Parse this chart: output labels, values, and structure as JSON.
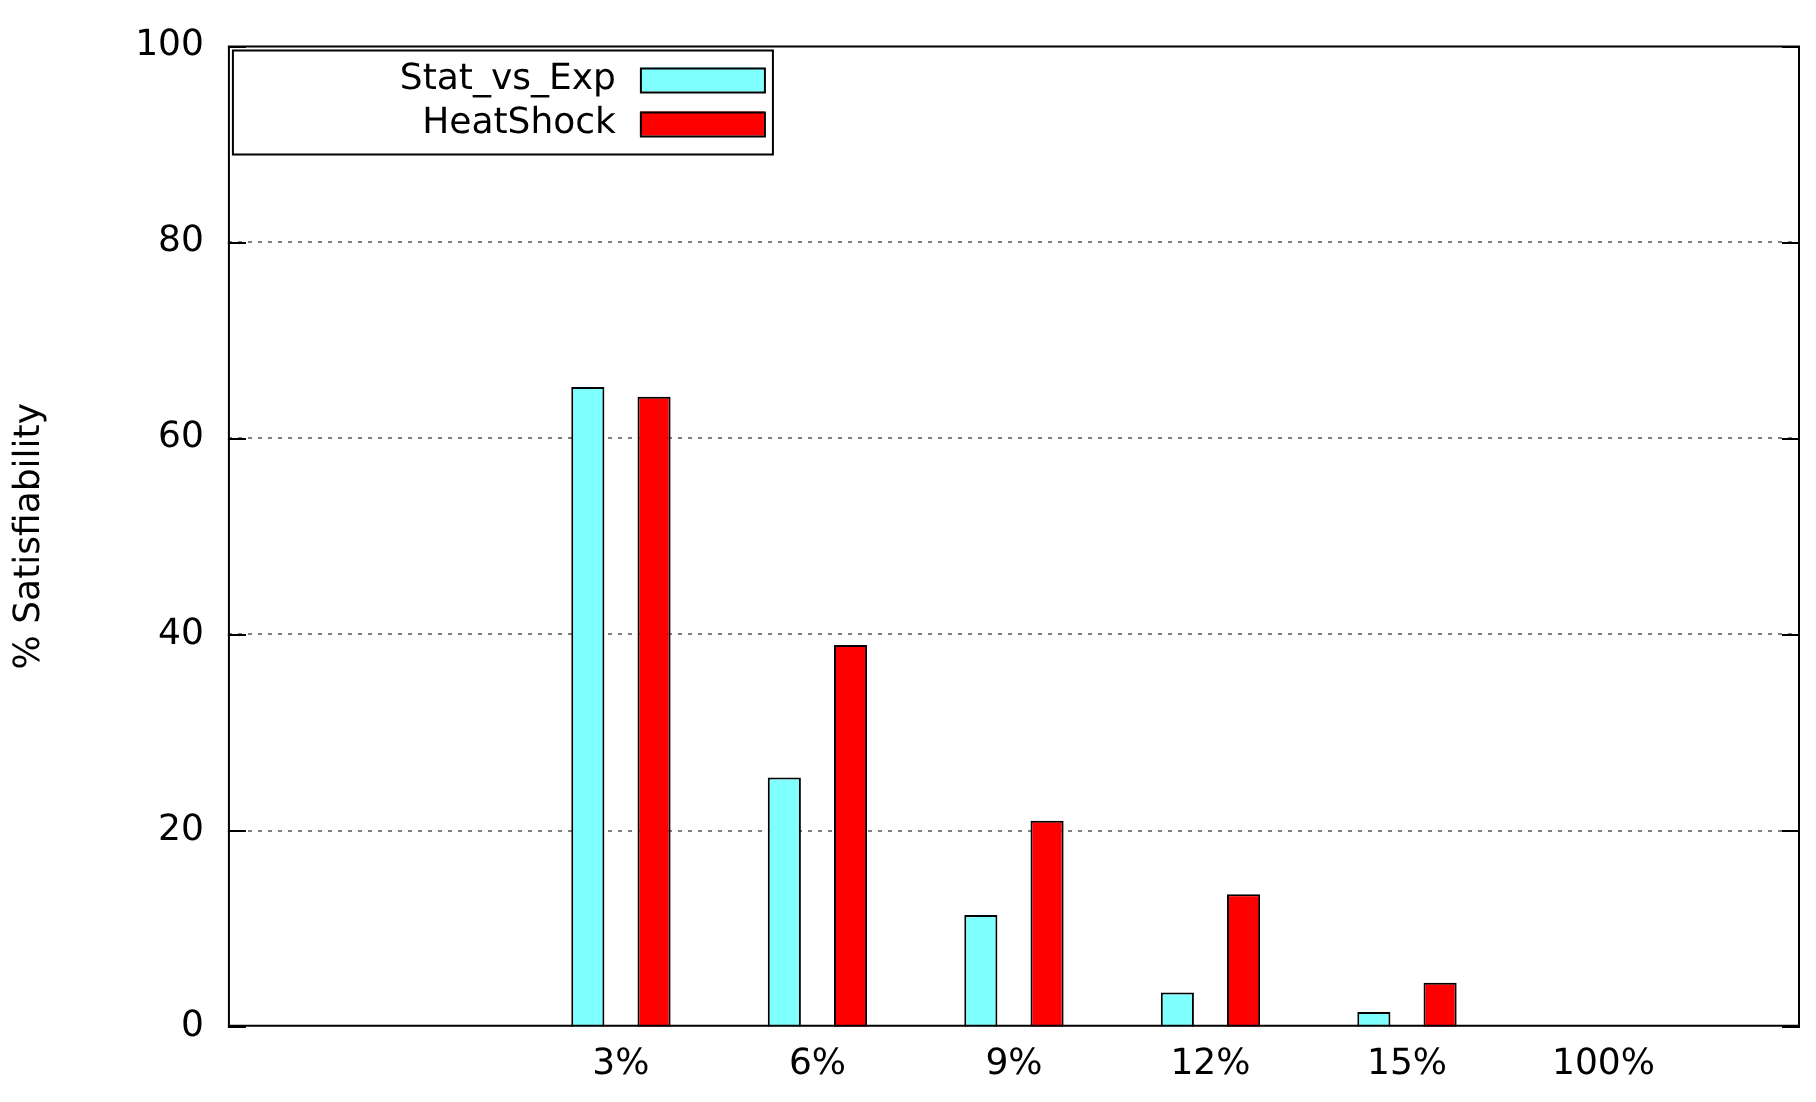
{
  "chart_data": {
    "type": "bar",
    "ylabel": "% Satisfiability",
    "categories": [
      null,
      null,
      "3%",
      "6%",
      "9%",
      "12%",
      "15%",
      "100%",
      null
    ],
    "series": [
      {
        "name": "Stat_vs_Exp",
        "color": "#80ffff",
        "values": [
          null,
          null,
          65.2,
          25.4,
          11.4,
          3.5,
          1.5,
          0,
          null
        ]
      },
      {
        "name": "HeatShock",
        "color": "#ff0000",
        "values": [
          null,
          null,
          64.2,
          38.9,
          21.0,
          13.5,
          4.5,
          0,
          null
        ]
      }
    ],
    "ylim": [
      0,
      100
    ],
    "yticks": [
      0,
      20,
      40,
      60,
      80,
      100
    ],
    "grid": "y",
    "legend": "top left"
  }
}
